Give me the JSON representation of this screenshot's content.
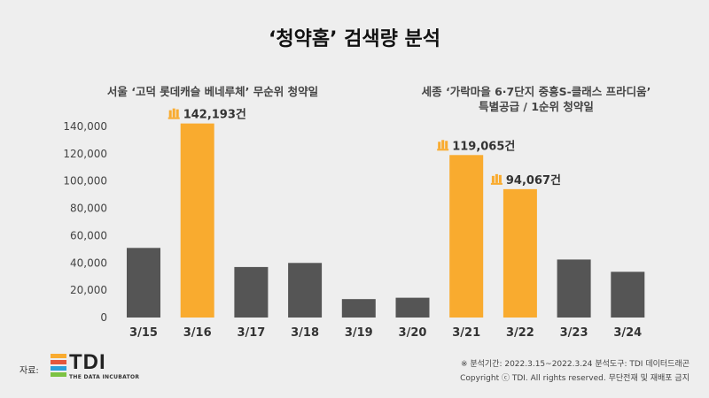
{
  "title": "‘청약홈’ 검색량 분석",
  "annotation_left": "서울 ‘고덕 롯데캐슬 베네루체’ 무순위 청약일",
  "annotation_right_line1": "세종 ‘가락마을 6·7단지 중흥S-클래스 프라디움’",
  "annotation_right_line2": "특별공급 / 1순위 청약일",
  "source_label": "자료:",
  "logo_text": "TDI",
  "logo_tagline": "THE DATA INCUBATOR",
  "footnote_period": "※ 분석기간: 2022.3.15~2022.3.24  분석도구: TDI 데이터드래곤",
  "footnote_copyright": "Copyright ⓒ TDI. All rights reserved. 무단전재 및 재배포 금지",
  "colors": {
    "highlight": "#f9ab2f",
    "normal": "#555555",
    "background": "#eeeeee"
  },
  "chart_data": {
    "type": "bar",
    "categories": [
      "3/15",
      "3/16",
      "3/17",
      "3/18",
      "3/19",
      "3/20",
      "3/21",
      "3/22",
      "3/23",
      "3/24"
    ],
    "values": [
      51000,
      142193,
      37000,
      40000,
      13500,
      14500,
      119065,
      94067,
      42500,
      33500
    ],
    "highlighted": [
      false,
      true,
      false,
      false,
      false,
      false,
      true,
      true,
      false,
      false
    ],
    "data_labels": [
      null,
      "142,193건",
      null,
      null,
      null,
      null,
      "119,065건",
      "94,067건",
      null,
      null
    ],
    "y_ticks": [
      0,
      20000,
      40000,
      60000,
      80000,
      100000,
      120000,
      140000
    ],
    "y_tick_labels": [
      "0",
      "20,000",
      "40,000",
      "60,000",
      "80,000",
      "100,000",
      "120,000",
      "140,000"
    ],
    "ylim": [
      0,
      140000
    ],
    "grid": false,
    "legend": "none"
  }
}
